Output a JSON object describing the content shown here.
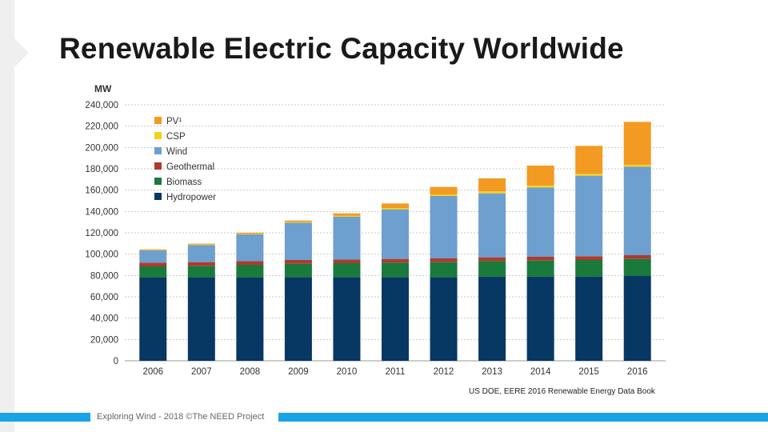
{
  "slide": {
    "title": "Renewable Electric Capacity Worldwide",
    "source": "US DOE, EERE 2016  Renewable Energy Data Book",
    "footer": "Exploring Wind - 2018  ©The NEED Project"
  },
  "colors": {
    "Hydropower": "#073763",
    "Biomass": "#1a7a3c",
    "Geothermal": "#b03a2e",
    "Wind": "#6d9fcf",
    "CSP": "#f2d21c",
    "PV": "#f39a22"
  },
  "chart_data": {
    "type": "bar",
    "stacked": true,
    "title": "",
    "ylabel": "MW",
    "xlabel": "",
    "ylim": [
      0,
      240000
    ],
    "yticks": [
      {
        "value": 0,
        "label": "0"
      },
      {
        "value": 20000,
        "label": "20,000"
      },
      {
        "value": 40000,
        "label": "40,000"
      },
      {
        "value": 60000,
        "label": "60,000"
      },
      {
        "value": 80000,
        "label": "80,000"
      },
      {
        "value": 100000,
        "label": "100,000"
      },
      {
        "value": 120000,
        "label": "120,000"
      },
      {
        "value": 140000,
        "label": "140,000"
      },
      {
        "value": 160000,
        "label": "160,000"
      },
      {
        "value": 180000,
        "label": "180,000"
      },
      {
        "value": 200000,
        "label": "200,000"
      },
      {
        "value": 220000,
        "label": "220,000"
      },
      {
        "value": 240000,
        "label": "240,000"
      }
    ],
    "grid": true,
    "legend_position": "top-left",
    "categories": [
      "2006",
      "2007",
      "2008",
      "2009",
      "2010",
      "2011",
      "2012",
      "2013",
      "2014",
      "2015",
      "2016"
    ],
    "series": [
      {
        "name": "Hydropower",
        "legend_label": "Hydropower",
        "values": [
          78000,
          78000,
          78000,
          78500,
          78500,
          78500,
          78500,
          79000,
          79000,
          79000,
          79500
        ]
      },
      {
        "name": "Biomass",
        "legend_label": "Biomass",
        "values": [
          10500,
          11000,
          12000,
          12500,
          13000,
          13500,
          14000,
          14500,
          15000,
          15500,
          16000
        ]
      },
      {
        "name": "Geothermal",
        "legend_label": "Geothermal",
        "values": [
          3500,
          3500,
          3500,
          3500,
          3500,
          3500,
          3500,
          3500,
          3500,
          3500,
          3500
        ]
      },
      {
        "name": "Wind",
        "legend_label": "Wind",
        "values": [
          11500,
          16000,
          25000,
          35000,
          40000,
          46500,
          58500,
          60000,
          65000,
          75500,
          83000
        ]
      },
      {
        "name": "CSP",
        "legend_label": "CSP",
        "values": [
          400,
          500,
          600,
          700,
          900,
          1200,
          1400,
          1800,
          1800,
          1800,
          1800
        ]
      },
      {
        "name": "PV",
        "legend_label": "PV¹",
        "values": [
          600,
          800,
          1000,
          1300,
          2300,
          4300,
          7100,
          12200,
          18700,
          26200,
          40200
        ]
      }
    ]
  }
}
